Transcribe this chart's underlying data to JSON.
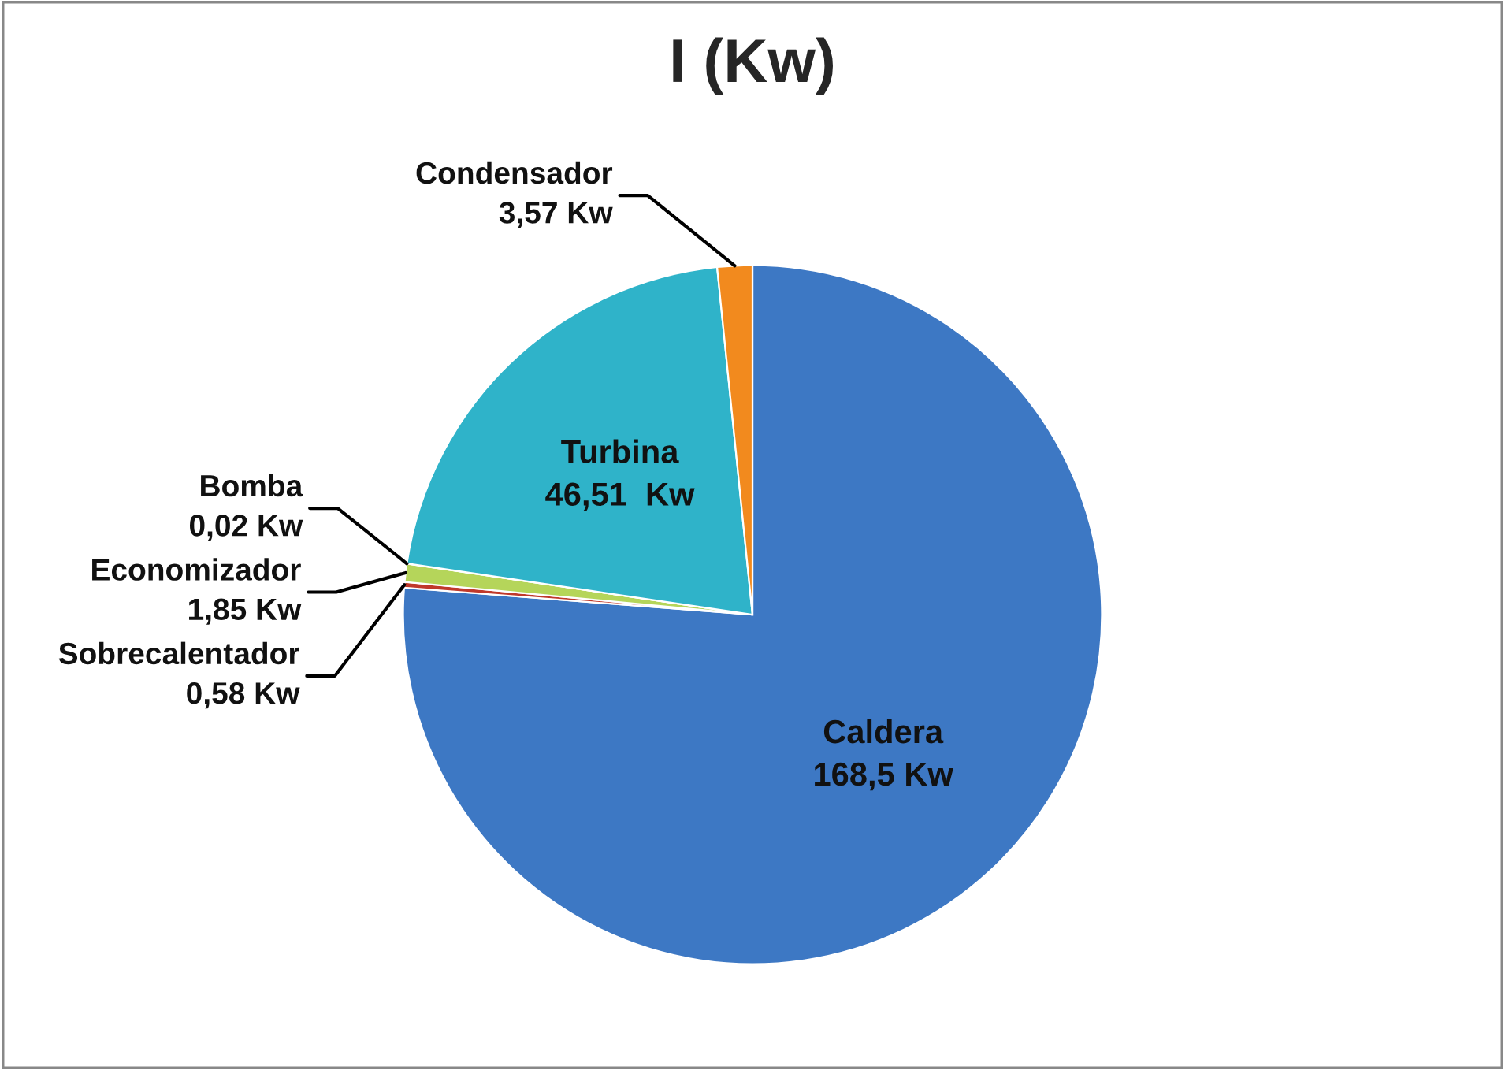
{
  "chart_data": {
    "type": "pie",
    "title": "I (Kw)",
    "categories": [
      "Caldera",
      "Sobrecalentador",
      "Economizador",
      "Bomba",
      "Turbina",
      "Condensador"
    ],
    "values": [
      168.5,
      0.58,
      1.85,
      0.02,
      46.51,
      3.57
    ],
    "value_labels": [
      "168,5 Kw",
      "0,58 Kw",
      "1,85 Kw",
      "0,02 Kw",
      "46,51  Kw",
      "3,57 Kw"
    ],
    "colors": [
      "#3d78c4",
      "#c0392b",
      "#b5d55a",
      "#7a5fa0",
      "#2fb3c9",
      "#f28a1e"
    ],
    "legend": false
  }
}
